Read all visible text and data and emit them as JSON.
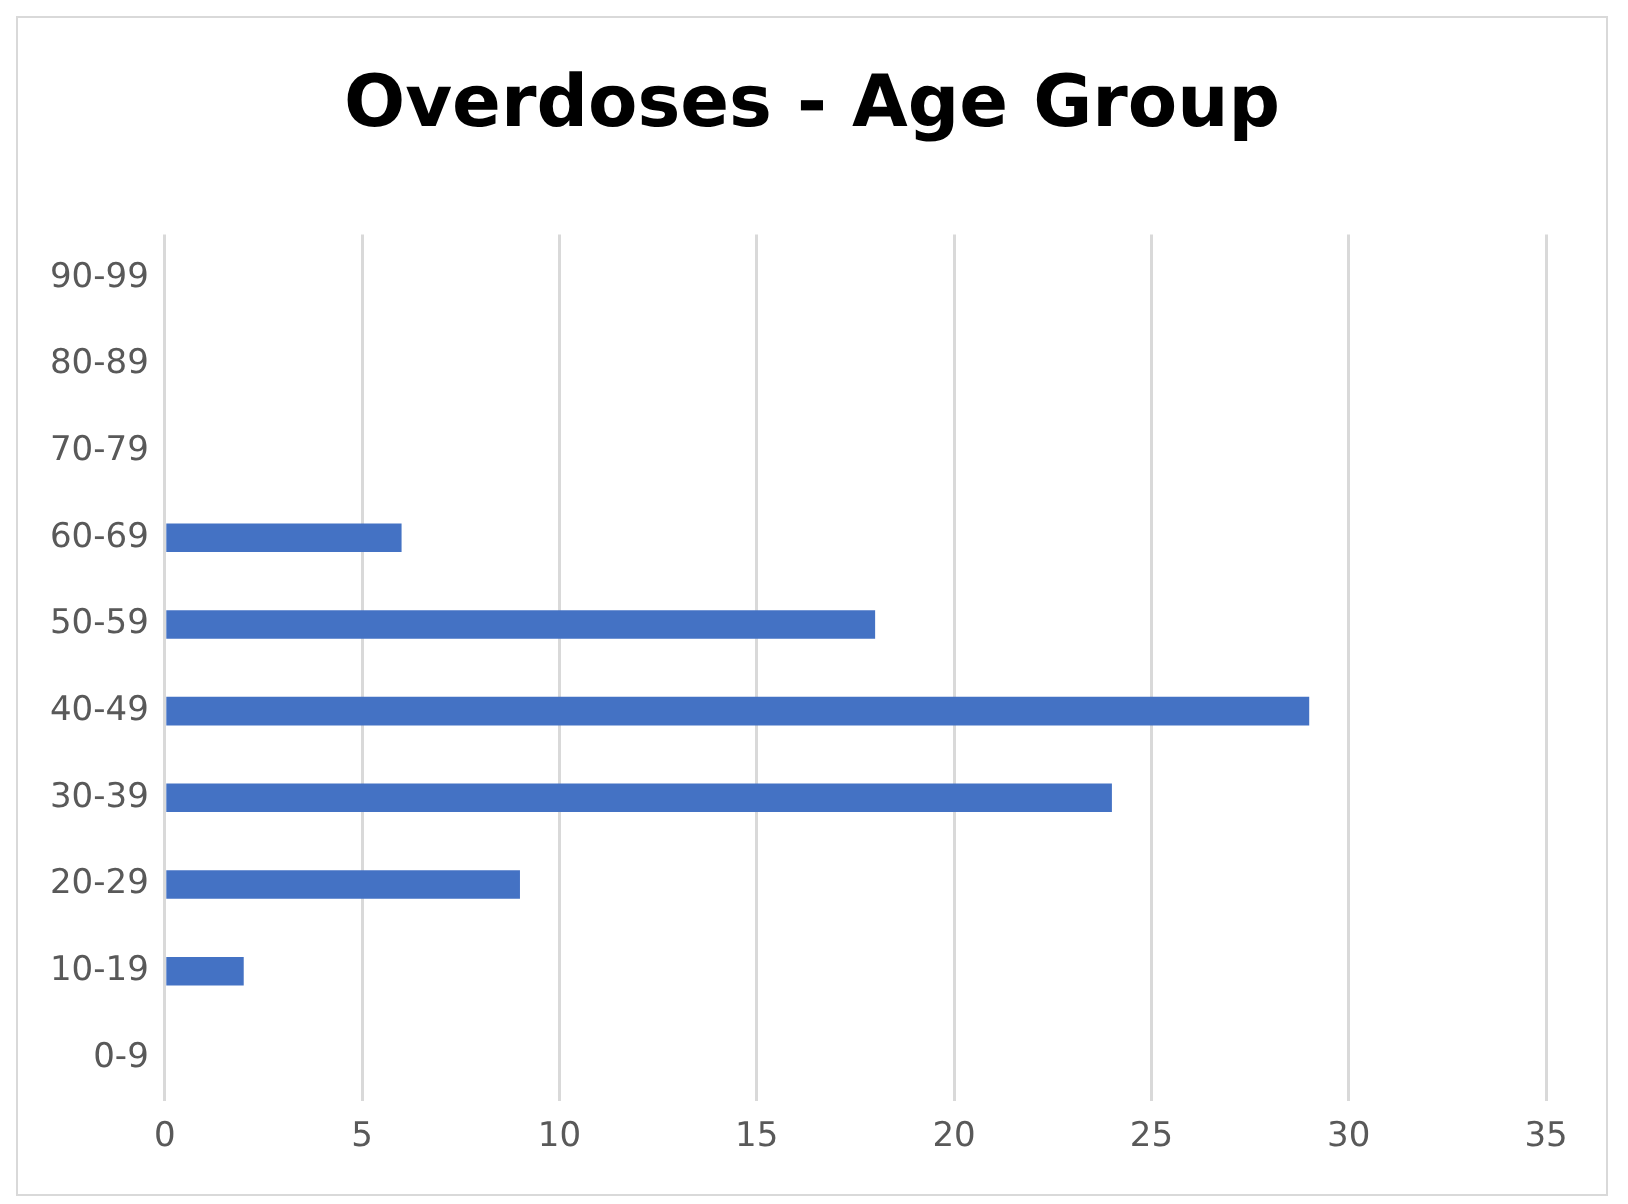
{
  "chart_data": {
    "type": "bar",
    "title": "Overdoses - Age Group",
    "orientation": "horizontal",
    "categories": [
      "90-99",
      "80-89",
      "70-79",
      "60-69",
      "50-59",
      "40-49",
      "30-39",
      "20-29",
      "10-19",
      "0-9"
    ],
    "values": [
      0,
      0,
      0,
      6,
      18,
      29,
      24,
      9,
      2,
      0
    ],
    "color": "#4472c4",
    "xlim": [
      0,
      35
    ],
    "xticks": [
      0,
      5,
      10,
      15,
      20,
      25,
      30,
      35
    ],
    "grid": "x"
  }
}
